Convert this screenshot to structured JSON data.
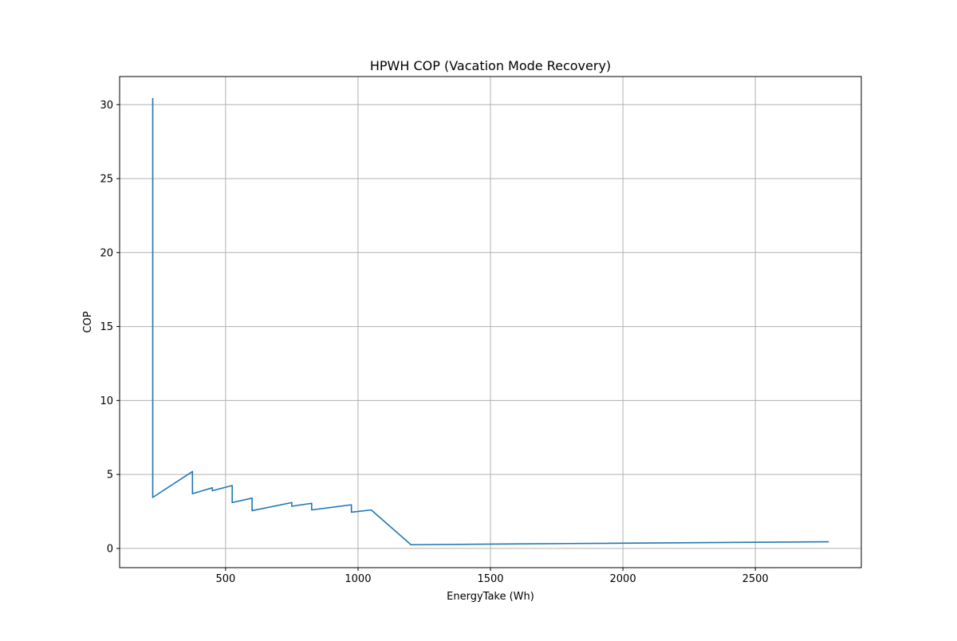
{
  "chart_data": {
    "type": "line",
    "title": "HPWH COP (Vacation Mode Recovery)",
    "xlabel": "EnergyTake (Wh)",
    "ylabel": "COP",
    "xlim": [
      100,
      2900
    ],
    "ylim": [
      -1.3,
      31.9
    ],
    "xticks": [
      500,
      1000,
      1500,
      2000,
      2500
    ],
    "yticks": [
      0,
      5,
      10,
      15,
      20,
      25,
      30
    ],
    "grid": true,
    "line_color": "#1f77b4",
    "series": [
      {
        "x": [
          225,
          225,
          375,
          375,
          450,
          450,
          525,
          525,
          600,
          600,
          750,
          750,
          825,
          825,
          975,
          975,
          1050,
          1200,
          1800,
          2775
        ],
        "y": [
          30.4,
          3.45,
          5.2,
          3.7,
          4.1,
          3.9,
          4.25,
          3.1,
          3.4,
          2.55,
          3.1,
          2.85,
          3.05,
          2.6,
          2.95,
          2.45,
          2.6,
          0.25,
          0.33,
          0.45
        ]
      }
    ]
  }
}
